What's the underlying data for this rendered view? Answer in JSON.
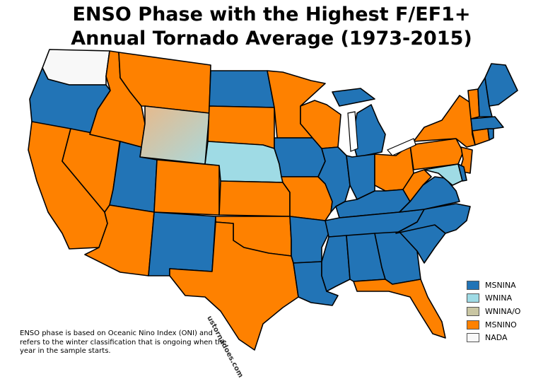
{
  "title": {
    "line1": "ENSO Phase with the Highest F/EF1+",
    "line2": "Annual Tornado Average (1973-2015)"
  },
  "colors": {
    "MSNINA": "#2274b6",
    "WNINA": "#9fdbe5",
    "WNINA_O": "#c9c6a3",
    "MSNINO": "#fe8100",
    "NADA": "#f8f8f8"
  },
  "legend": [
    {
      "label": "MSNINA",
      "color": "#2274b6"
    },
    {
      "label": "WNINA",
      "color": "#9fdbe5"
    },
    {
      "label": "WNINA/O",
      "color": "#c9c6a3"
    },
    {
      "label": "MSNINO",
      "color": "#fe8100"
    },
    {
      "label": "NADA",
      "color": "#f8f8f8"
    }
  ],
  "note": "ENSO phase is based on Oceanic Nino Index (ONI) and refers to the winter classification that is ongoing when the year in the sample starts.",
  "watermark": "ustornadoes.com",
  "states": {
    "WA": "NADA",
    "OR": "MSNINA",
    "CA": "MSNINO",
    "NV": "MSNINO",
    "ID": "MSNINO",
    "MT": "MSNINO",
    "WY": "WNINA/O",
    "UT": "MSNINA",
    "AZ": "MSNINO",
    "CO": "MSNINO",
    "NM": "MSNINA",
    "ND": "MSNINA",
    "SD": "MSNINO",
    "NE": "WNINA",
    "KS": "MSNINO",
    "OK": "MSNINO",
    "TX": "MSNINO",
    "MN": "MSNINO",
    "IA": "MSNINA",
    "MO": "MSNINO",
    "AR": "MSNINA",
    "LA": "MSNINA",
    "WI": "MSNINO",
    "IL": "MSNINA",
    "MI": "MSNINA",
    "IN": "MSNINA",
    "OH": "MSNINO",
    "KY": "MSNINA",
    "TN": "MSNINA",
    "MS": "MSNINA",
    "AL": "MSNINA",
    "GA": "MSNINA",
    "FL": "MSNINO",
    "SC": "MSNINA",
    "NC": "MSNINA",
    "VA": "MSNINA",
    "WV": "MSNINO",
    "PA": "MSNINO",
    "NY": "MSNINO",
    "NJ": "MSNINO",
    "DE": "MSNINA",
    "MD": "WNINA",
    "CT": "MSNINO",
    "RI": "MSNINA",
    "MA": "MSNINA",
    "VT": "MSNINO",
    "NH": "MSNINA",
    "ME": "MSNINA"
  }
}
